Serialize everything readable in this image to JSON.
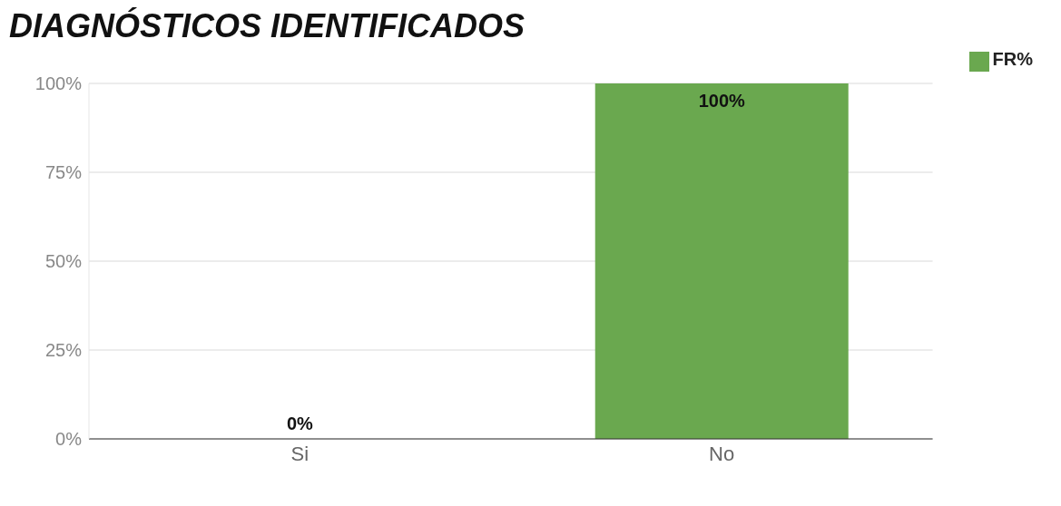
{
  "chart_data": {
    "type": "bar",
    "title": "DIAGNÓSTICOS IDENTIFICADOS",
    "categories": [
      "Si",
      "No"
    ],
    "series": [
      {
        "name": "FR%",
        "color": "#6aa84f",
        "values": [
          0,
          100
        ],
        "value_labels": [
          "0%",
          "100%"
        ]
      }
    ],
    "ylim": [
      0,
      100
    ],
    "yticks": [
      {
        "value": 0,
        "label": "0%"
      },
      {
        "value": 25,
        "label": "25%"
      },
      {
        "value": 50,
        "label": "50%"
      },
      {
        "value": 75,
        "label": "75%"
      },
      {
        "value": 100,
        "label": "100%"
      }
    ],
    "grid": "y",
    "legend": "top right"
  }
}
